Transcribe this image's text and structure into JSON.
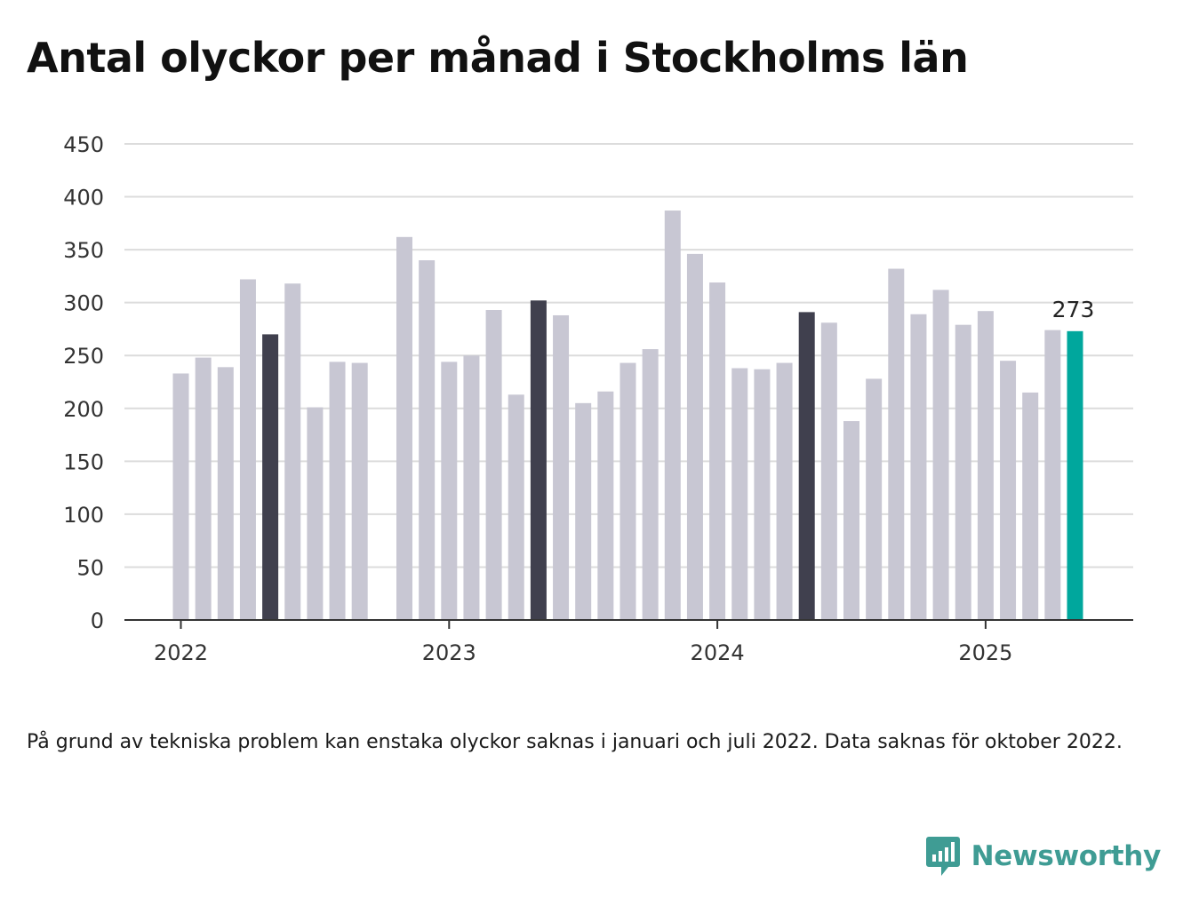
{
  "title": "Antal olyckor per månad i Stockholms län",
  "note": "På grund av tekniska problem kan enstaka olyckor saknas i januari och juli 2022. Data saknas för oktober 2022.",
  "brand": {
    "name": "Newsworthy",
    "icon": "newsworthy-logo-icon",
    "color": "#3f9c94"
  },
  "chart_data": {
    "type": "bar",
    "ylim": [
      0,
      450
    ],
    "yticks": [
      0,
      50,
      100,
      150,
      200,
      250,
      300,
      350,
      400,
      450
    ],
    "xticks": [
      "2022",
      "2023",
      "2024",
      "2025"
    ],
    "grid": true,
    "colors": {
      "default": "#c8c7d3",
      "may": "#40404e",
      "latest": "#00a79d"
    },
    "data_label": "273",
    "bars": [
      {
        "month": "2022-01",
        "value": 233
      },
      {
        "month": "2022-02",
        "value": 248
      },
      {
        "month": "2022-03",
        "value": 239
      },
      {
        "month": "2022-04",
        "value": 322
      },
      {
        "month": "2022-05",
        "value": 270
      },
      {
        "month": "2022-06",
        "value": 318
      },
      {
        "month": "2022-07",
        "value": 201
      },
      {
        "month": "2022-08",
        "value": 244
      },
      {
        "month": "2022-09",
        "value": 243
      },
      {
        "month": "2022-10",
        "value": null
      },
      {
        "month": "2022-11",
        "value": 362
      },
      {
        "month": "2022-12",
        "value": 340
      },
      {
        "month": "2023-01",
        "value": 244
      },
      {
        "month": "2023-02",
        "value": 250
      },
      {
        "month": "2023-03",
        "value": 293
      },
      {
        "month": "2023-04",
        "value": 213
      },
      {
        "month": "2023-05",
        "value": 302
      },
      {
        "month": "2023-06",
        "value": 288
      },
      {
        "month": "2023-07",
        "value": 205
      },
      {
        "month": "2023-08",
        "value": 216
      },
      {
        "month": "2023-09",
        "value": 243
      },
      {
        "month": "2023-10",
        "value": 256
      },
      {
        "month": "2023-11",
        "value": 387
      },
      {
        "month": "2023-12",
        "value": 346
      },
      {
        "month": "2024-01",
        "value": 319
      },
      {
        "month": "2024-02",
        "value": 238
      },
      {
        "month": "2024-03",
        "value": 237
      },
      {
        "month": "2024-04",
        "value": 243
      },
      {
        "month": "2024-05",
        "value": 291
      },
      {
        "month": "2024-06",
        "value": 281
      },
      {
        "month": "2024-07",
        "value": 188
      },
      {
        "month": "2024-08",
        "value": 228
      },
      {
        "month": "2024-09",
        "value": 332
      },
      {
        "month": "2024-10",
        "value": 289
      },
      {
        "month": "2024-11",
        "value": 312
      },
      {
        "month": "2024-12",
        "value": 279
      },
      {
        "month": "2025-01",
        "value": 292
      },
      {
        "month": "2025-02",
        "value": 245
      },
      {
        "month": "2025-03",
        "value": 215
      },
      {
        "month": "2025-04",
        "value": 274
      },
      {
        "month": "2025-05",
        "value": 273
      }
    ]
  }
}
